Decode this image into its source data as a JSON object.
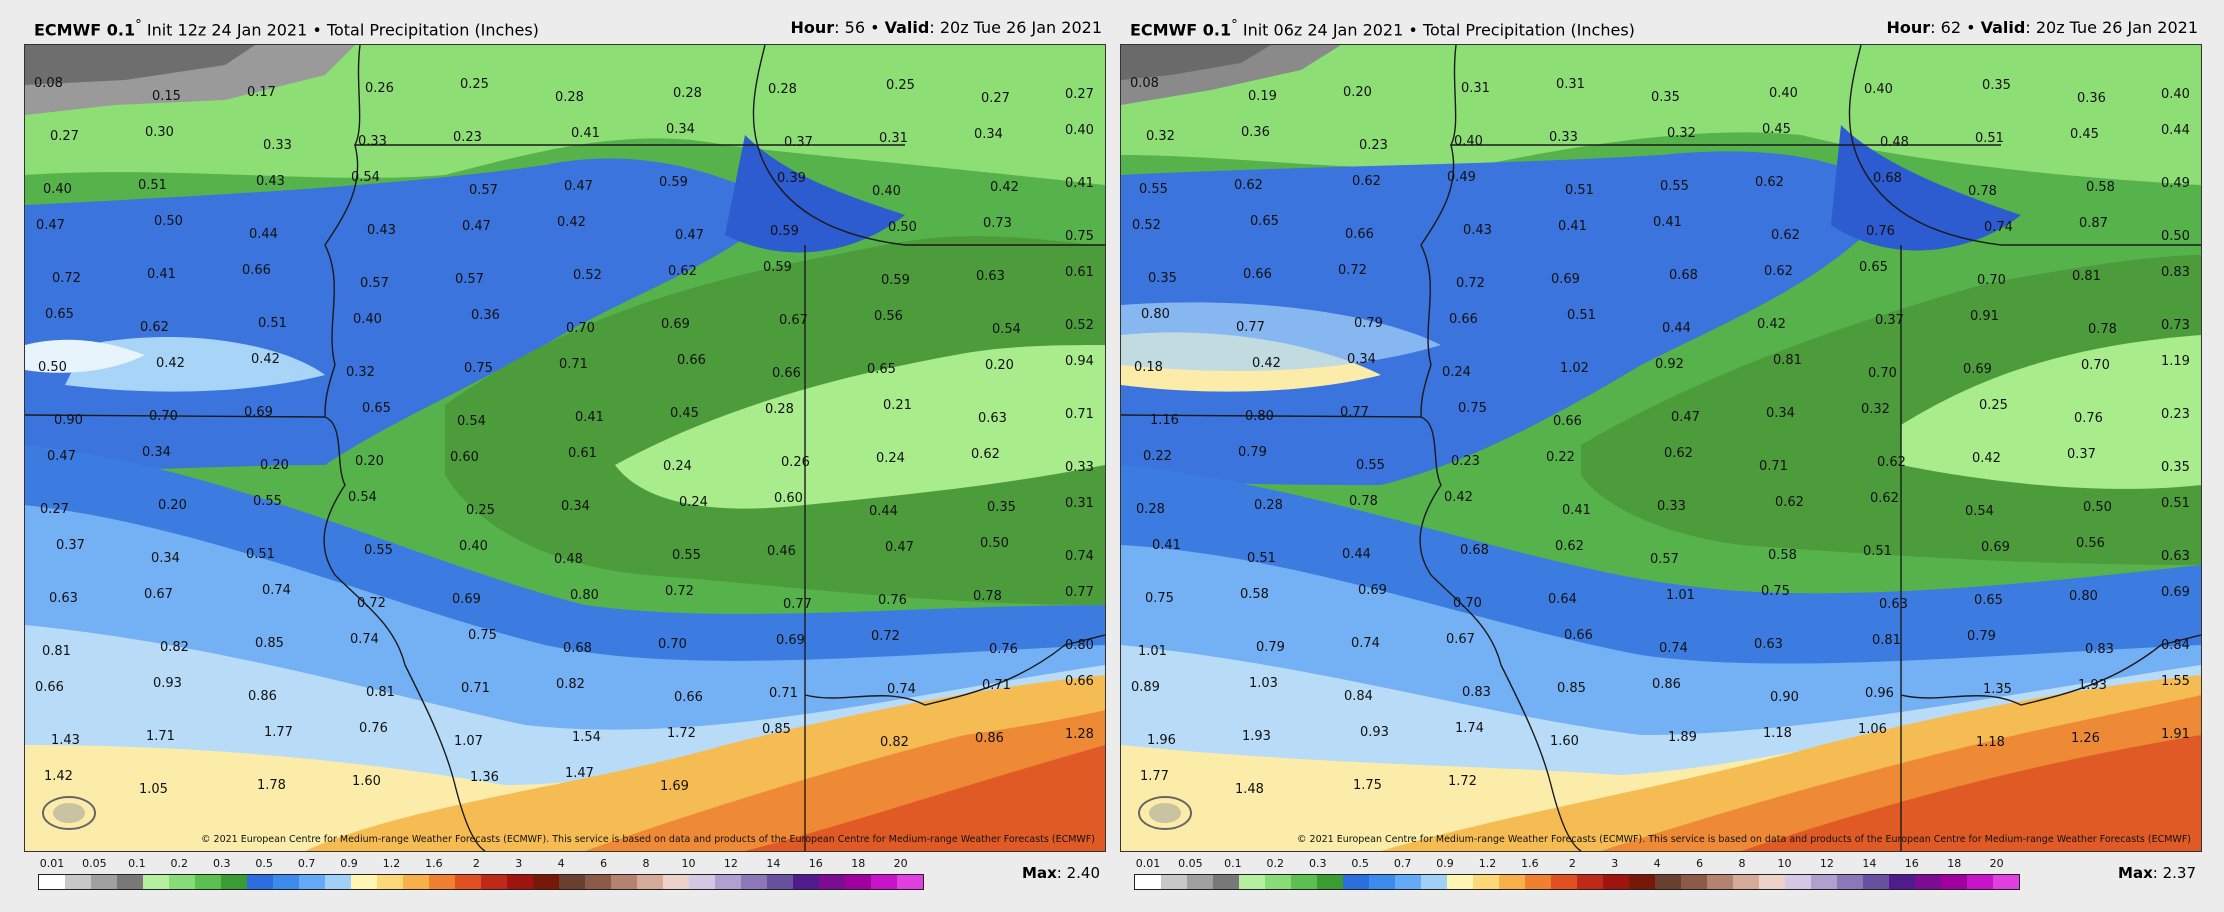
{
  "panels": [
    {
      "model_label": "ECMWF 0.1",
      "init_text": "Init 12z 24 Jan 2021",
      "product_text": "Total Precipitation (Inches)",
      "hour_label": "Hour",
      "hour_value": "56",
      "valid_label": "Valid",
      "valid_value": "20z Tue 26 Jan 2021",
      "max_label": "Max",
      "max_value": "2.40",
      "copyright": "© 2021 European Centre for Medium-range Weather Forecasts (ECMWF). This service is based on data and products of the European Centre for Medium-range Weather Forecasts (ECMWF)",
      "values": [
        "0.08",
        "0.15",
        "0.17",
        "0.26",
        "0.25",
        "0.28",
        "0.28",
        "0.28",
        "0.25",
        "0.27",
        "0.27",
        "0.27",
        "0.30",
        "0.33",
        "0.33",
        "0.23",
        "0.41",
        "0.34",
        "0.37",
        "0.31",
        "0.34",
        "0.40",
        "0.40",
        "0.51",
        "0.43",
        "0.54",
        "0.57",
        "0.47",
        "0.59",
        "0.39",
        "0.40",
        "0.42",
        "0.41",
        "0.47",
        "0.50",
        "0.44",
        "0.43",
        "0.47",
        "0.42",
        "0.47",
        "0.59",
        "0.50",
        "0.73",
        "0.75",
        "0.72",
        "0.41",
        "0.66",
        "0.57",
        "0.57",
        "0.52",
        "0.62",
        "0.59",
        "0.59",
        "0.63",
        "0.61",
        "0.65",
        "0.62",
        "0.51",
        "0.40",
        "0.36",
        "0.70",
        "0.69",
        "0.67",
        "0.56",
        "0.54",
        "0.52",
        "0.50",
        "0.42",
        "0.42",
        "0.32",
        "0.75",
        "0.71",
        "0.66",
        "0.66",
        "0.65",
        "0.20",
        "0.94",
        "0.90",
        "0.70",
        "0.69",
        "0.65",
        "0.54",
        "0.41",
        "0.45",
        "0.28",
        "0.21",
        "0.63",
        "0.71",
        "0.47",
        "0.34",
        "0.20",
        "0.20",
        "0.60",
        "0.61",
        "0.24",
        "0.26",
        "0.24",
        "0.62",
        "0.33",
        "0.27",
        "0.20",
        "0.55",
        "0.54",
        "0.25",
        "0.34",
        "0.24",
        "0.60",
        "0.44",
        "0.35",
        "0.31",
        "0.37",
        "0.34",
        "0.51",
        "0.55",
        "0.40",
        "0.48",
        "0.55",
        "0.46",
        "0.47",
        "0.50",
        "0.74",
        "0.63",
        "0.67",
        "0.74",
        "0.72",
        "0.69",
        "0.80",
        "0.72",
        "0.77",
        "0.76",
        "0.78",
        "0.77",
        "0.81",
        "0.82",
        "0.85",
        "0.74",
        "0.75",
        "0.68",
        "0.70",
        "0.69",
        "0.72",
        "0.76",
        "0.80",
        "0.66",
        "0.93",
        "0.86",
        "0.81",
        "0.71",
        "0.82",
        "0.66",
        "0.71",
        "0.74",
        "0.71",
        "0.66",
        "1.43",
        "1.71",
        "1.77",
        "0.76",
        "1.07",
        "1.54",
        "1.72",
        "0.85",
        "0.82",
        "0.86",
        "1.28",
        "1.42",
        "1.05",
        "1.78",
        "1.60",
        "1.36",
        "1.47",
        "1.69"
      ]
    },
    {
      "model_label": "ECMWF 0.1",
      "init_text": "Init 06z 24 Jan 2021",
      "product_text": "Total Precipitation (Inches)",
      "hour_label": "Hour",
      "hour_value": "62",
      "valid_label": "Valid",
      "valid_value": "20z Tue 26 Jan 2021",
      "max_label": "Max",
      "max_value": "2.37",
      "copyright": "© 2021 European Centre for Medium-range Weather Forecasts (ECMWF). This service is based on data and products of the European Centre for Medium-range Weather Forecasts (ECMWF)",
      "values": [
        "0.08",
        "0.19",
        "0.20",
        "0.31",
        "0.31",
        "0.35",
        "0.40",
        "0.40",
        "0.35",
        "0.36",
        "0.40",
        "0.32",
        "0.36",
        "0.23",
        "0.40",
        "0.33",
        "0.32",
        "0.45",
        "0.48",
        "0.51",
        "0.45",
        "0.44",
        "0.55",
        "0.62",
        "0.62",
        "0.49",
        "0.51",
        "0.55",
        "0.62",
        "0.68",
        "0.78",
        "0.58",
        "0.49",
        "0.52",
        "0.65",
        "0.66",
        "0.43",
        "0.41",
        "0.41",
        "0.62",
        "0.76",
        "0.74",
        "0.87",
        "0.50",
        "0.35",
        "0.66",
        "0.72",
        "0.72",
        "0.69",
        "0.68",
        "0.62",
        "0.65",
        "0.70",
        "0.81",
        "0.83",
        "0.80",
        "0.77",
        "0.79",
        "0.66",
        "0.51",
        "0.44",
        "0.42",
        "0.37",
        "0.91",
        "0.78",
        "0.73",
        "0.18",
        "0.42",
        "0.34",
        "0.24",
        "1.02",
        "0.92",
        "0.81",
        "0.70",
        "0.69",
        "0.70",
        "1.19",
        "1.16",
        "0.80",
        "0.77",
        "0.75",
        "0.66",
        "0.47",
        "0.34",
        "0.32",
        "0.25",
        "0.76",
        "0.23",
        "0.22",
        "0.79",
        "0.55",
        "0.23",
        "0.22",
        "0.62",
        "0.71",
        "0.62",
        "0.42",
        "0.37",
        "0.35",
        "0.28",
        "0.28",
        "0.78",
        "0.42",
        "0.41",
        "0.33",
        "0.62",
        "0.62",
        "0.54",
        "0.50",
        "0.51",
        "0.41",
        "0.51",
        "0.44",
        "0.68",
        "0.62",
        "0.57",
        "0.58",
        "0.51",
        "0.69",
        "0.56",
        "0.63",
        "0.75",
        "0.58",
        "0.69",
        "0.70",
        "0.64",
        "1.01",
        "0.75",
        "0.63",
        "0.65",
        "0.80",
        "0.69",
        "1.01",
        "0.79",
        "0.74",
        "0.67",
        "0.66",
        "0.74",
        "0.63",
        "0.81",
        "0.79",
        "0.83",
        "0.84",
        "0.89",
        "1.03",
        "0.84",
        "0.83",
        "0.85",
        "0.86",
        "0.90",
        "0.96",
        "1.35",
        "1.93",
        "1.55",
        "1.96",
        "1.93",
        "0.93",
        "1.74",
        "1.60",
        "1.89",
        "1.18",
        "1.06",
        "1.18",
        "1.26",
        "1.91",
        "1.77",
        "1.48",
        "1.75",
        "1.72"
      ]
    }
  ],
  "legend": {
    "ticks": [
      "0.01",
      "0.05",
      "0.1",
      "0.2",
      "0.3",
      "0.5",
      "0.7",
      "0.9",
      "1.2",
      "1.6",
      "2",
      "3",
      "4",
      "6",
      "8",
      "10",
      "12",
      "14",
      "16",
      "18",
      "20"
    ],
    "colors": [
      "#ffffff",
      "#c8c8c8",
      "#a0a0a0",
      "#787878",
      "#b4f0a0",
      "#88dc78",
      "#5cc050",
      "#3c9c34",
      "#2a6ee0",
      "#3c8cf0",
      "#64aaf8",
      "#a0d0f8",
      "#fff6b4",
      "#fcd878",
      "#f8b048",
      "#f08030",
      "#e05020",
      "#c02818",
      "#a01410",
      "#781808",
      "#6a4030",
      "#8c5a48",
      "#b48270",
      "#d4aa98",
      "#ecd2c8",
      "#d4c8e4",
      "#b0a0d0",
      "#8c78b8",
      "#6a50a0",
      "#501c8c",
      "#7c0c90",
      "#a000a0",
      "#c814c8",
      "#e040e0"
    ]
  }
}
